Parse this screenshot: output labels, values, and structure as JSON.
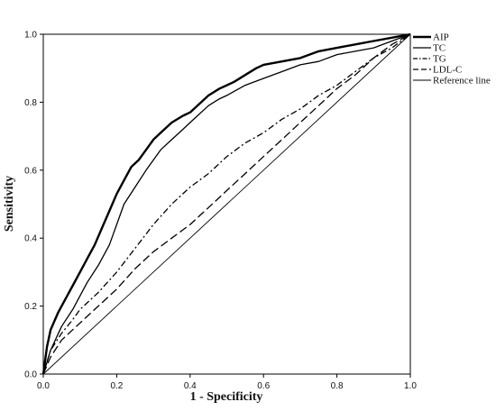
{
  "chart_data": {
    "type": "line",
    "title": "",
    "xlabel": "1 - Specificity",
    "ylabel": "Sensitivity",
    "xlim": [
      0.0,
      1.0
    ],
    "ylim": [
      0.0,
      1.0
    ],
    "xticks": [
      "0.0",
      "0.2",
      "0.4",
      "0.6",
      "0.8",
      "1.0"
    ],
    "yticks": [
      "0.0",
      "0.2",
      "0.4",
      "0.6",
      "0.8",
      "1.0"
    ],
    "grid": false,
    "legend_position": "right",
    "series": [
      {
        "name": "AIP",
        "style": "thick-solid",
        "x": [
          0,
          0.01,
          0.02,
          0.04,
          0.06,
          0.08,
          0.1,
          0.12,
          0.14,
          0.16,
          0.18,
          0.2,
          0.22,
          0.24,
          0.26,
          0.28,
          0.3,
          0.32,
          0.35,
          0.38,
          0.4,
          0.42,
          0.45,
          0.48,
          0.5,
          0.52,
          0.55,
          0.58,
          0.6,
          0.65,
          0.7,
          0.75,
          0.8,
          0.85,
          0.9,
          0.95,
          1.0
        ],
        "y": [
          0,
          0.08,
          0.13,
          0.18,
          0.22,
          0.26,
          0.3,
          0.34,
          0.38,
          0.43,
          0.48,
          0.53,
          0.57,
          0.61,
          0.63,
          0.66,
          0.69,
          0.71,
          0.74,
          0.76,
          0.77,
          0.79,
          0.82,
          0.84,
          0.85,
          0.86,
          0.88,
          0.9,
          0.91,
          0.92,
          0.93,
          0.95,
          0.96,
          0.97,
          0.98,
          0.99,
          1.0
        ]
      },
      {
        "name": "TC",
        "style": "thin-solid",
        "x": [
          0,
          0.02,
          0.05,
          0.08,
          0.1,
          0.12,
          0.15,
          0.18,
          0.2,
          0.22,
          0.25,
          0.28,
          0.3,
          0.32,
          0.35,
          0.38,
          0.4,
          0.42,
          0.45,
          0.48,
          0.5,
          0.55,
          0.6,
          0.65,
          0.7,
          0.75,
          0.8,
          0.85,
          0.9,
          0.95,
          1.0
        ],
        "y": [
          0,
          0.07,
          0.14,
          0.19,
          0.23,
          0.27,
          0.32,
          0.38,
          0.44,
          0.5,
          0.55,
          0.6,
          0.63,
          0.66,
          0.69,
          0.72,
          0.74,
          0.76,
          0.79,
          0.81,
          0.82,
          0.85,
          0.87,
          0.89,
          0.91,
          0.92,
          0.94,
          0.95,
          0.96,
          0.98,
          1.0
        ]
      },
      {
        "name": "TG",
        "style": "dash-dot",
        "x": [
          0,
          0.02,
          0.05,
          0.08,
          0.1,
          0.15,
          0.2,
          0.25,
          0.3,
          0.35,
          0.4,
          0.45,
          0.5,
          0.55,
          0.6,
          0.65,
          0.7,
          0.75,
          0.8,
          0.85,
          0.9,
          0.95,
          1.0
        ],
        "y": [
          0,
          0.07,
          0.12,
          0.16,
          0.19,
          0.24,
          0.3,
          0.37,
          0.44,
          0.5,
          0.55,
          0.59,
          0.64,
          0.68,
          0.71,
          0.75,
          0.78,
          0.82,
          0.85,
          0.89,
          0.93,
          0.96,
          1.0
        ]
      },
      {
        "name": "LDL-C",
        "style": "long-dash",
        "x": [
          0,
          0.02,
          0.05,
          0.1,
          0.15,
          0.2,
          0.25,
          0.3,
          0.35,
          0.4,
          0.45,
          0.5,
          0.55,
          0.6,
          0.65,
          0.7,
          0.75,
          0.8,
          0.85,
          0.9,
          0.95,
          1.0
        ],
        "y": [
          0,
          0.05,
          0.1,
          0.15,
          0.2,
          0.25,
          0.31,
          0.36,
          0.4,
          0.44,
          0.49,
          0.54,
          0.59,
          0.64,
          0.69,
          0.74,
          0.79,
          0.84,
          0.88,
          0.93,
          0.97,
          1.0
        ]
      },
      {
        "name": "Reference line",
        "style": "reference",
        "x": [
          0,
          1
        ],
        "y": [
          0,
          1
        ]
      }
    ]
  }
}
